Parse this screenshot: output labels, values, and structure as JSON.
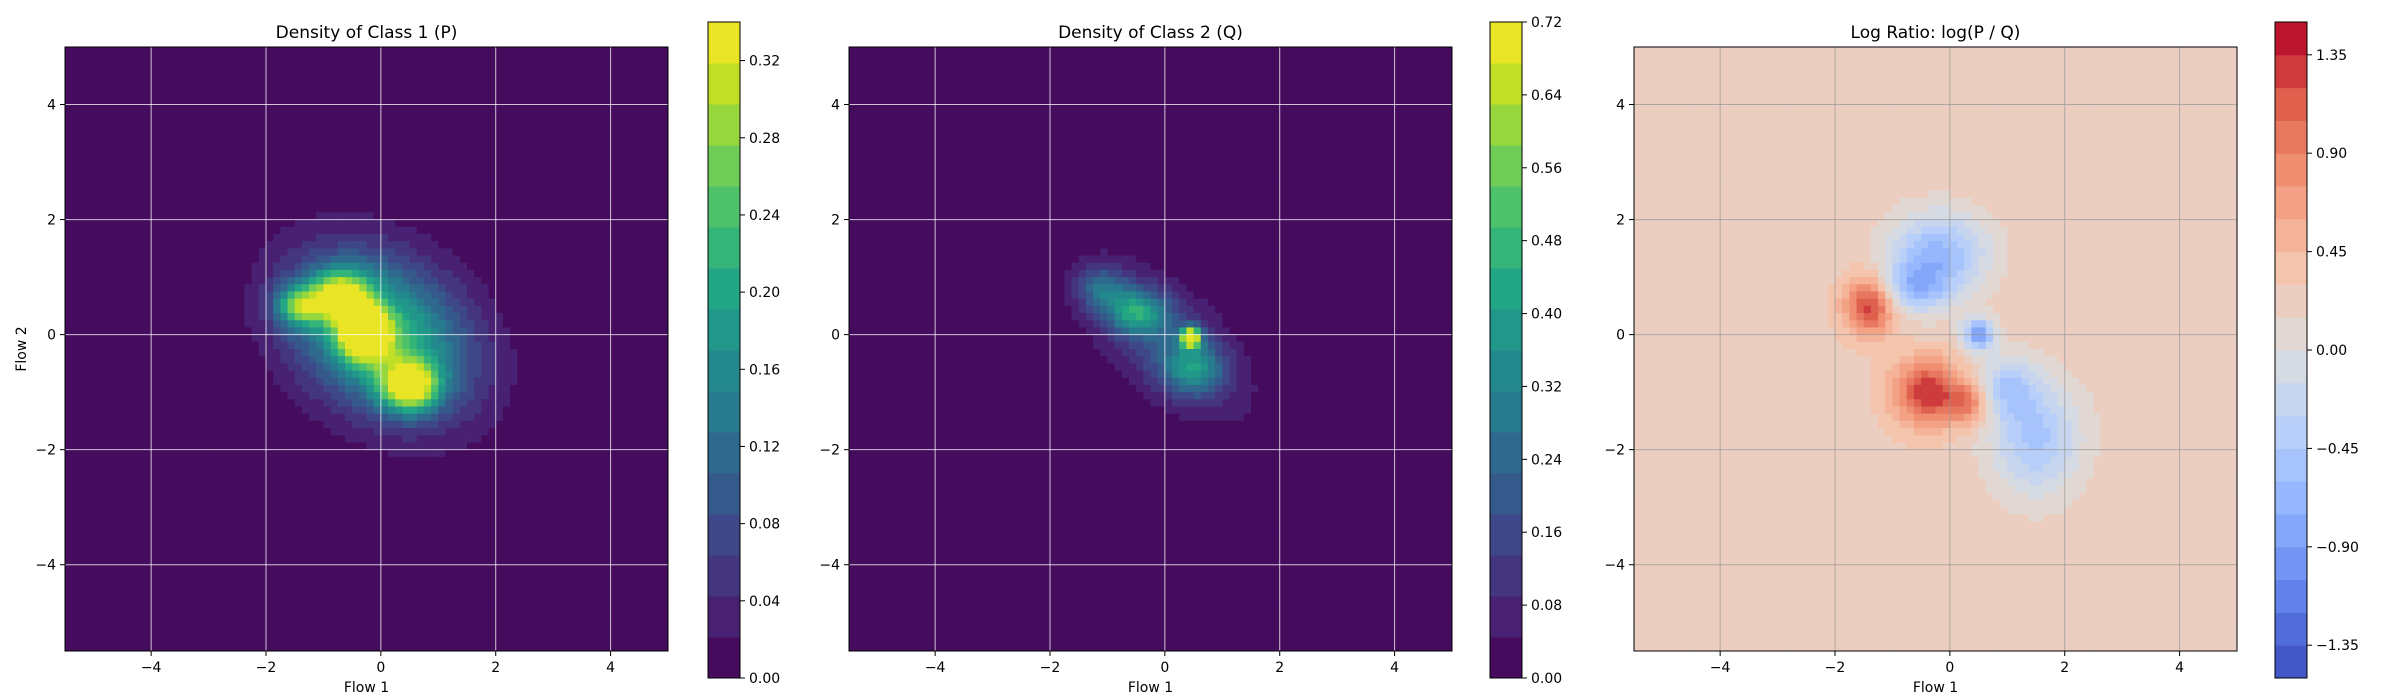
{
  "chart_data": [
    {
      "type": "heatmap",
      "title": "Density of Class 1 (P)",
      "xlabel": "Flow 1",
      "ylabel": "Flow 2",
      "xlim": [
        -5.5,
        5.0
      ],
      "ylim": [
        -5.5,
        5.0
      ],
      "xticks": [
        -4,
        -2,
        0,
        2,
        4
      ],
      "yticks": [
        -4,
        -2,
        0,
        2,
        4
      ],
      "grid": true,
      "colormap": "viridis",
      "colorbar": {
        "min": 0.0,
        "max": 0.34,
        "ticks": [
          0.0,
          0.04,
          0.08,
          0.12,
          0.16,
          0.2,
          0.24,
          0.28,
          0.32
        ],
        "tick_labels": [
          "0.00",
          "0.04",
          "0.08",
          "0.12",
          "0.16",
          "0.20",
          "0.24",
          "0.28",
          "0.32"
        ]
      },
      "blobs": [
        {
          "x": 0.0,
          "y": 0.0,
          "sx": 1.15,
          "sy": 0.85,
          "rot": -35,
          "peak": 0.24
        },
        {
          "x": -0.3,
          "y": 0.0,
          "sx": 0.3,
          "sy": 0.3,
          "rot": 0,
          "peak": 0.31
        },
        {
          "x": 0.5,
          "y": -0.9,
          "sx": 0.35,
          "sy": 0.3,
          "rot": 0,
          "peak": 0.28
        },
        {
          "x": -0.7,
          "y": 0.7,
          "sx": 0.35,
          "sy": 0.3,
          "rot": 0,
          "peak": 0.22
        },
        {
          "x": -1.4,
          "y": 0.5,
          "sx": 0.3,
          "sy": 0.25,
          "rot": 0,
          "peak": 0.2
        }
      ]
    },
    {
      "type": "heatmap",
      "title": "Density of Class 2 (Q)",
      "xlabel": "Flow 1",
      "ylabel": "",
      "xlim": [
        -5.5,
        5.0
      ],
      "ylim": [
        -5.5,
        5.0
      ],
      "xticks": [
        -4,
        -2,
        0,
        2,
        4
      ],
      "yticks": [
        -4,
        -2,
        0,
        2,
        4
      ],
      "grid": true,
      "colormap": "viridis",
      "colorbar": {
        "min": 0.0,
        "max": 0.72,
        "ticks": [
          0.0,
          0.08,
          0.16,
          0.24,
          0.32,
          0.4,
          0.48,
          0.56,
          0.64,
          0.72
        ],
        "tick_labels": [
          "0.00",
          "0.08",
          "0.16",
          "0.24",
          "0.32",
          "0.40",
          "0.48",
          "0.56",
          "0.64",
          "0.72"
        ]
      },
      "blobs": [
        {
          "x": 0.0,
          "y": -0.1,
          "sx": 1.1,
          "sy": 0.55,
          "rot": -42,
          "peak": 0.2
        },
        {
          "x": 0.45,
          "y": -0.05,
          "sx": 0.12,
          "sy": 0.12,
          "rot": 0,
          "peak": 0.72
        },
        {
          "x": -0.5,
          "y": 0.4,
          "sx": 0.35,
          "sy": 0.25,
          "rot": 0,
          "peak": 0.3
        },
        {
          "x": 0.5,
          "y": -0.6,
          "sx": 0.35,
          "sy": 0.3,
          "rot": 0,
          "peak": 0.26
        },
        {
          "x": -1.1,
          "y": 0.8,
          "sx": 0.3,
          "sy": 0.25,
          "rot": 0,
          "peak": 0.2
        }
      ]
    },
    {
      "type": "heatmap",
      "title": "Log Ratio: log(P / Q)",
      "xlabel": "Flow 1",
      "ylabel": "",
      "xlim": [
        -5.5,
        5.0
      ],
      "ylim": [
        -5.5,
        5.0
      ],
      "xticks": [
        -4,
        -2,
        0,
        2,
        4
      ],
      "yticks": [
        -4,
        -2,
        0,
        2,
        4
      ],
      "grid": true,
      "colormap": "coolwarm",
      "colorbar": {
        "min": -1.5,
        "max": 1.5,
        "ticks": [
          -1.35,
          -0.9,
          -0.45,
          0.0,
          0.45,
          0.9,
          1.35
        ],
        "tick_labels": [
          "−1.35",
          "−0.90",
          "−0.45",
          "0.00",
          "0.45",
          "0.90",
          "1.35"
        ]
      },
      "background": 0.25,
      "blobs": [
        {
          "x": -1.4,
          "y": 0.5,
          "sx": 0.3,
          "sy": 0.35,
          "rot": 0,
          "peak": 1.05
        },
        {
          "x": -0.4,
          "y": -1.0,
          "sx": 0.4,
          "sy": 0.4,
          "rot": 0,
          "peak": 1.1
        },
        {
          "x": 0.3,
          "y": -1.2,
          "sx": 0.25,
          "sy": 0.25,
          "rot": 0,
          "peak": 0.7
        },
        {
          "x": -0.2,
          "y": 1.4,
          "sx": 0.6,
          "sy": 0.5,
          "rot": 0,
          "peak": -0.9
        },
        {
          "x": -0.6,
          "y": 0.8,
          "sx": 0.4,
          "sy": 0.3,
          "rot": 0,
          "peak": -0.7
        },
        {
          "x": 0.5,
          "y": 0.0,
          "sx": 0.2,
          "sy": 0.2,
          "rot": 0,
          "peak": -1.1
        },
        {
          "x": 1.5,
          "y": -1.8,
          "sx": 0.55,
          "sy": 0.7,
          "rot": 0,
          "peak": -0.75
        },
        {
          "x": 1.0,
          "y": -0.9,
          "sx": 0.35,
          "sy": 0.35,
          "rot": 0,
          "peak": -0.6
        }
      ]
    }
  ]
}
